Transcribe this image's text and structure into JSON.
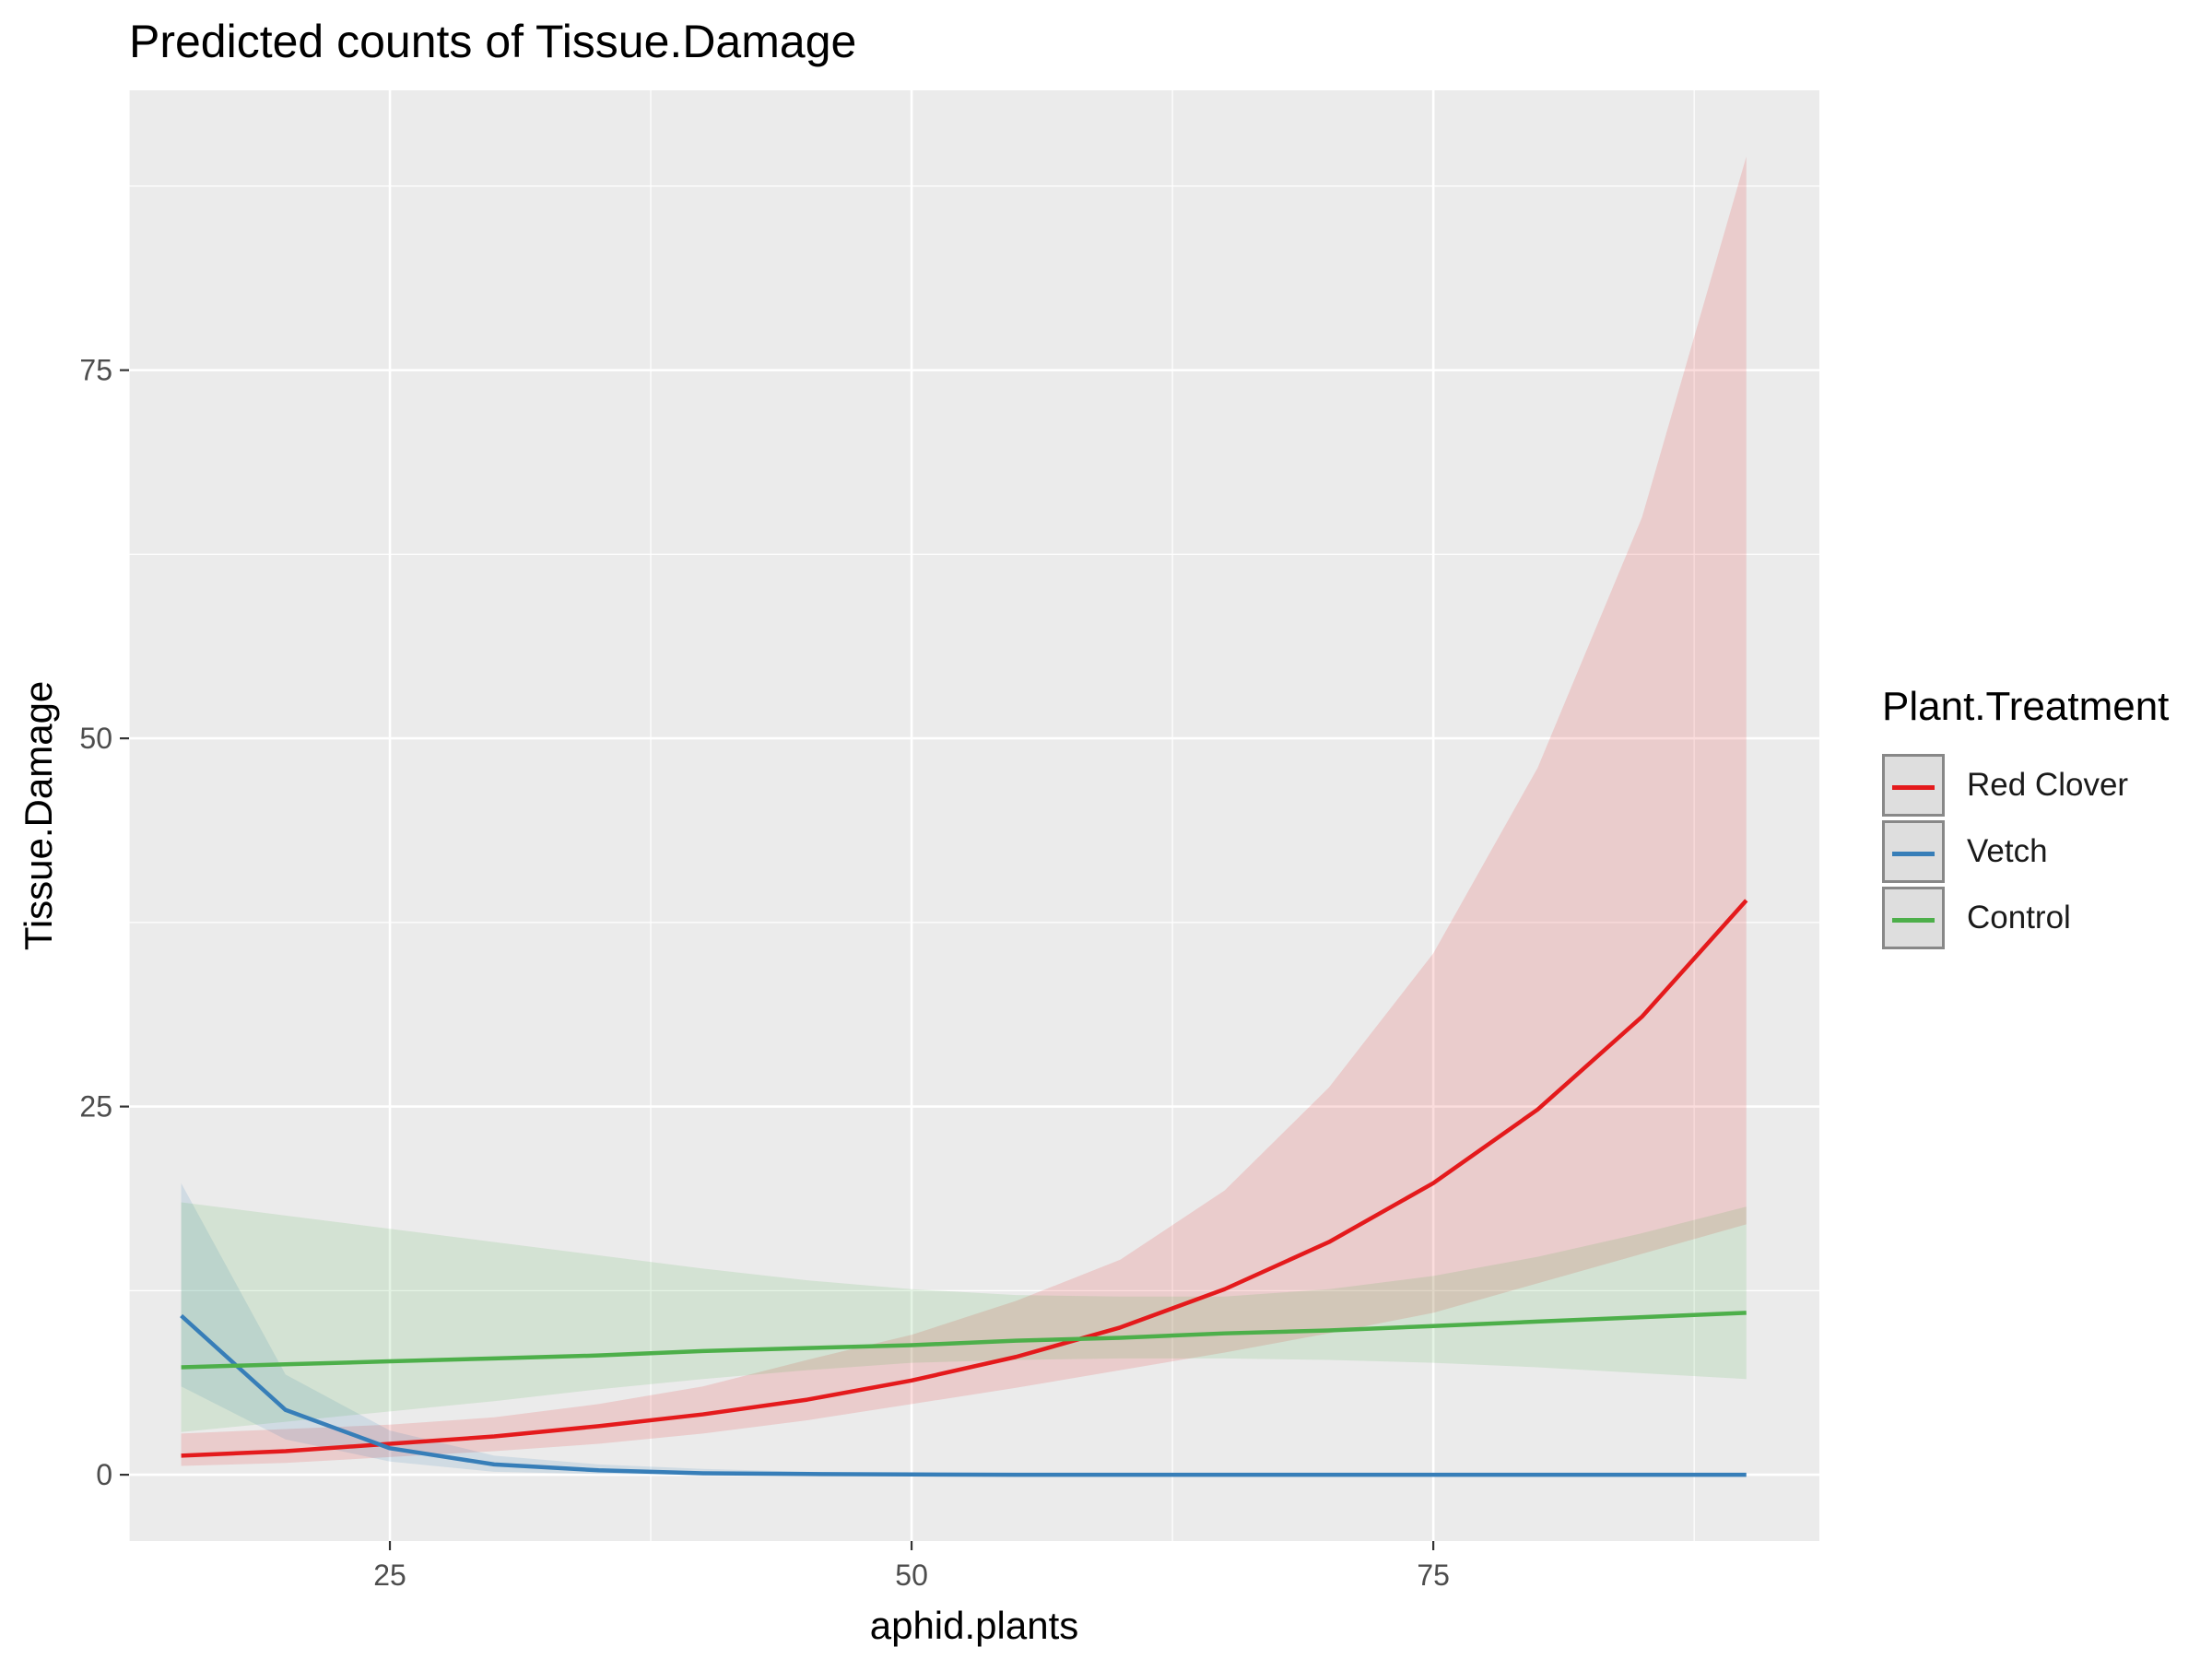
{
  "chart_data": {
    "type": "line",
    "title": "Predicted counts of Tissue.Damage",
    "xlabel": "aphid.plants",
    "ylabel": "Tissue.Damage",
    "xlim": [
      12.5,
      93.5
    ],
    "ylim": [
      -4.5,
      94
    ],
    "xticks": [
      25,
      50,
      75
    ],
    "yticks": [
      0,
      25,
      50,
      75
    ],
    "x_minor": [
      12.5,
      37.5,
      62.5,
      87.5
    ],
    "y_minor": [
      12.5,
      37.5,
      62.5,
      87.5
    ],
    "grid": true,
    "legend_title": "Plant.Treatment",
    "legend_position": "right",
    "series": [
      {
        "name": "Red Clover",
        "color": "#e41a1c",
        "x": [
          15,
          20,
          25,
          30,
          35,
          40,
          45,
          50,
          55,
          60,
          65,
          70,
          75,
          80,
          85,
          90
        ],
        "values": [
          1.3,
          1.6,
          2.1,
          2.6,
          3.3,
          4.1,
          5.1,
          6.4,
          8.0,
          10.0,
          12.6,
          15.8,
          19.8,
          24.8,
          31.1,
          39.0
        ],
        "lower": [
          0.6,
          0.8,
          1.2,
          1.6,
          2.1,
          2.8,
          3.7,
          4.8,
          5.9,
          7.1,
          8.3,
          9.6,
          11.0,
          13.0,
          15.0,
          17.0
        ],
        "upper": [
          2.8,
          3.1,
          3.4,
          3.9,
          4.8,
          6.0,
          7.8,
          9.5,
          11.8,
          14.6,
          19.3,
          26.3,
          35.4,
          48.0,
          65.0,
          89.5
        ]
      },
      {
        "name": "Vetch",
        "color": "#377eb8",
        "x": [
          15,
          20,
          25,
          30,
          35,
          40,
          45,
          50,
          55,
          60,
          65,
          70,
          75,
          80,
          85,
          90
        ],
        "values": [
          10.8,
          4.4,
          1.8,
          0.7,
          0.3,
          0.1,
          0.05,
          0.02,
          0,
          0,
          0,
          0,
          0,
          0,
          0,
          0
        ],
        "lower": [
          6.0,
          2.4,
          0.9,
          0.2,
          0.05,
          0,
          0,
          0,
          0,
          0,
          0,
          0,
          0,
          0,
          0,
          0
        ],
        "upper": [
          19.8,
          6.8,
          3.0,
          1.3,
          0.7,
          0.4,
          0.2,
          0.1,
          0.05,
          0,
          0,
          0,
          0,
          0,
          0,
          0
        ]
      },
      {
        "name": "Control",
        "color": "#4daf4a",
        "x": [
          15,
          20,
          25,
          30,
          35,
          40,
          45,
          50,
          55,
          60,
          65,
          70,
          75,
          80,
          85,
          90
        ],
        "values": [
          7.3,
          7.5,
          7.7,
          7.9,
          8.1,
          8.4,
          8.6,
          8.8,
          9.1,
          9.3,
          9.6,
          9.8,
          10.1,
          10.4,
          10.7,
          11.0
        ],
        "lower": [
          2.9,
          3.6,
          4.3,
          5.0,
          5.8,
          6.5,
          7.1,
          7.6,
          7.8,
          7.9,
          7.9,
          7.8,
          7.6,
          7.3,
          6.9,
          6.5
        ],
        "upper": [
          18.5,
          17.6,
          16.7,
          15.8,
          14.9,
          14.0,
          13.2,
          12.6,
          12.2,
          12.1,
          12.1,
          12.6,
          13.5,
          14.8,
          16.4,
          18.2
        ]
      }
    ]
  }
}
